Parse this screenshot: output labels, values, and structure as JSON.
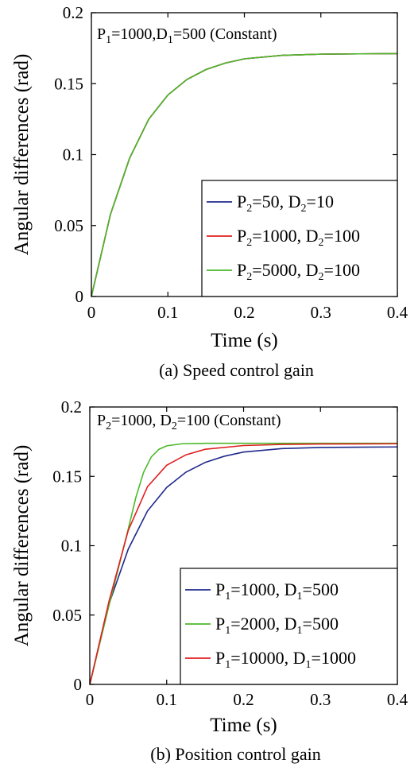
{
  "chart_data": [
    {
      "type": "line",
      "caption": "(a) Speed control gain",
      "xlabel": "Time (s)",
      "ylabel": "Angular differences (rad)",
      "xlim": [
        0,
        0.4
      ],
      "ylim": [
        0,
        0.2
      ],
      "xticks": [
        "0",
        "0.1",
        "0.2",
        "0.3",
        "0.4"
      ],
      "yticks": [
        "0",
        "0.05",
        "0.1",
        "0.15",
        "0.2"
      ],
      "annotation": [
        {
          "t": "P"
        },
        {
          "t": "1",
          "sub": true
        },
        {
          "t": "=1000,D"
        },
        {
          "t": "1",
          "sub": true
        },
        {
          "t": "=500 (Constant)"
        }
      ],
      "legend_position": "lower-right",
      "series": [
        {
          "name": [
            {
              "t": "P"
            },
            {
              "t": "2",
              "sub": true
            },
            {
              "t": "=50, D"
            },
            {
              "t": "2",
              "sub": true
            },
            {
              "t": "=10"
            }
          ],
          "color": "#1f2a8c",
          "x": [
            0,
            0.025,
            0.05,
            0.075,
            0.1,
            0.125,
            0.15,
            0.175,
            0.2,
            0.25,
            0.3,
            0.35,
            0.4
          ],
          "y": [
            0,
            0.058,
            0.0975,
            0.125,
            0.142,
            0.153,
            0.16,
            0.1645,
            0.1675,
            0.17,
            0.1708,
            0.171,
            0.1712
          ]
        },
        {
          "name": [
            {
              "t": "P"
            },
            {
              "t": "2",
              "sub": true
            },
            {
              "t": "=1000, D"
            },
            {
              "t": "2",
              "sub": true
            },
            {
              "t": "=100"
            }
          ],
          "color": "#e02020",
          "x": [
            0,
            0.025,
            0.05,
            0.075,
            0.1,
            0.125,
            0.15,
            0.175,
            0.2,
            0.25,
            0.3,
            0.35,
            0.4
          ],
          "y": [
            0,
            0.058,
            0.0975,
            0.125,
            0.142,
            0.153,
            0.16,
            0.1645,
            0.1675,
            0.17,
            0.1708,
            0.171,
            0.1712
          ]
        },
        {
          "name": [
            {
              "t": "P"
            },
            {
              "t": "2",
              "sub": true
            },
            {
              "t": "=5000, D"
            },
            {
              "t": "2",
              "sub": true
            },
            {
              "t": "=100"
            }
          ],
          "color": "#4cb82a",
          "x": [
            0,
            0.025,
            0.05,
            0.075,
            0.1,
            0.125,
            0.15,
            0.175,
            0.2,
            0.25,
            0.3,
            0.35,
            0.4
          ],
          "y": [
            0,
            0.058,
            0.0975,
            0.125,
            0.142,
            0.153,
            0.16,
            0.1645,
            0.1675,
            0.17,
            0.1708,
            0.171,
            0.1712
          ]
        }
      ]
    },
    {
      "type": "line",
      "caption": "(b) Position control gain",
      "xlabel": "Time (s)",
      "ylabel": "Angular differences (rad)",
      "xlim": [
        0,
        0.4
      ],
      "ylim": [
        0,
        0.2
      ],
      "xticks": [
        "0",
        "0.1",
        "0.2",
        "0.3",
        "0.4"
      ],
      "yticks": [
        "0",
        "0.05",
        "0.1",
        "0.15",
        "0.2"
      ],
      "annotation": [
        {
          "t": "P"
        },
        {
          "t": "2",
          "sub": true
        },
        {
          "t": "=1000, D"
        },
        {
          "t": "2",
          "sub": true
        },
        {
          "t": "=100 (Constant)"
        }
      ],
      "legend_position": "lower-right",
      "series": [
        {
          "name": [
            {
              "t": "P"
            },
            {
              "t": "1",
              "sub": true
            },
            {
              "t": "=1000, D"
            },
            {
              "t": "1",
              "sub": true
            },
            {
              "t": "=500"
            }
          ],
          "color": "#1f2a8c",
          "x": [
            0,
            0.025,
            0.05,
            0.075,
            0.1,
            0.125,
            0.15,
            0.175,
            0.2,
            0.25,
            0.3,
            0.35,
            0.4
          ],
          "y": [
            0,
            0.058,
            0.0975,
            0.125,
            0.142,
            0.153,
            0.16,
            0.1645,
            0.1675,
            0.17,
            0.1708,
            0.171,
            0.1712
          ]
        },
        {
          "name": [
            {
              "t": "P"
            },
            {
              "t": "1",
              "sub": true
            },
            {
              "t": "=2000, D"
            },
            {
              "t": "1",
              "sub": true
            },
            {
              "t": "=500"
            }
          ],
          "color": "#4cb82a",
          "x": [
            0,
            0.025,
            0.05,
            0.06,
            0.07,
            0.08,
            0.09,
            0.1,
            0.12,
            0.15,
            0.2,
            0.3,
            0.4
          ],
          "y": [
            0,
            0.057,
            0.112,
            0.135,
            0.153,
            0.164,
            0.1695,
            0.172,
            0.1735,
            0.1738,
            0.1738,
            0.1738,
            0.1738
          ]
        },
        {
          "name": [
            {
              "t": "P"
            },
            {
              "t": "1",
              "sub": true
            },
            {
              "t": "=10000, D"
            },
            {
              "t": "1",
              "sub": true
            },
            {
              "t": "=1000"
            }
          ],
          "color": "#e02020",
          "x": [
            0,
            0.025,
            0.05,
            0.075,
            0.1,
            0.125,
            0.15,
            0.2,
            0.25,
            0.3,
            0.35,
            0.4
          ],
          "y": [
            0,
            0.06,
            0.111,
            0.1425,
            0.158,
            0.1655,
            0.1695,
            0.1722,
            0.173,
            0.1733,
            0.1734,
            0.1735
          ]
        }
      ]
    }
  ]
}
